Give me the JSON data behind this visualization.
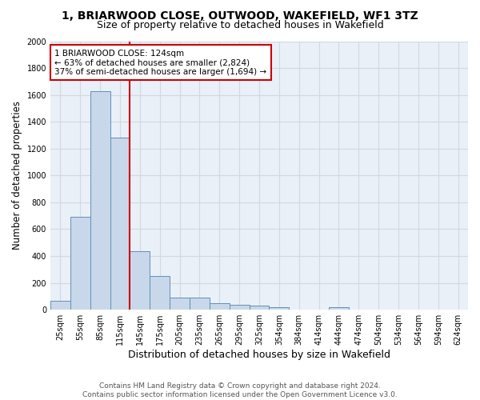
{
  "title": "1, BRIARWOOD CLOSE, OUTWOOD, WAKEFIELD, WF1 3TZ",
  "subtitle": "Size of property relative to detached houses in Wakefield",
  "xlabel": "Distribution of detached houses by size in Wakefield",
  "ylabel": "Number of detached properties",
  "footer_line1": "Contains HM Land Registry data © Crown copyright and database right 2024.",
  "footer_line2": "Contains public sector information licensed under the Open Government Licence v3.0.",
  "property_label": "1 BRIARWOOD CLOSE: 124sqm",
  "annotation_line1": "← 63% of detached houses are smaller (2,824)",
  "annotation_line2": "37% of semi-detached houses are larger (1,694) →",
  "bar_color": "#c8d8ea",
  "bar_edge_color": "#6090b8",
  "vline_color": "#cc0000",
  "annotation_box_edge_color": "#cc0000",
  "grid_color": "#d0d8e0",
  "background_color": "#eaf0f8",
  "categories": [
    "25sqm",
    "55sqm",
    "85sqm",
    "115sqm",
    "145sqm",
    "175sqm",
    "205sqm",
    "235sqm",
    "265sqm",
    "295sqm",
    "325sqm",
    "354sqm",
    "384sqm",
    "414sqm",
    "444sqm",
    "474sqm",
    "504sqm",
    "534sqm",
    "564sqm",
    "594sqm",
    "624sqm"
  ],
  "values": [
    65,
    695,
    1625,
    1280,
    435,
    250,
    90,
    88,
    50,
    38,
    30,
    18,
    0,
    0,
    18,
    0,
    0,
    0,
    0,
    0,
    0
  ],
  "ylim": [
    0,
    2000
  ],
  "yticks": [
    0,
    200,
    400,
    600,
    800,
    1000,
    1200,
    1400,
    1600,
    1800,
    2000
  ],
  "vline_x_index": 3.5,
  "title_fontsize": 10,
  "subtitle_fontsize": 9,
  "ylabel_fontsize": 8.5,
  "xlabel_fontsize": 9,
  "tick_fontsize": 7,
  "annotation_fontsize": 7.5,
  "footer_fontsize": 6.5
}
